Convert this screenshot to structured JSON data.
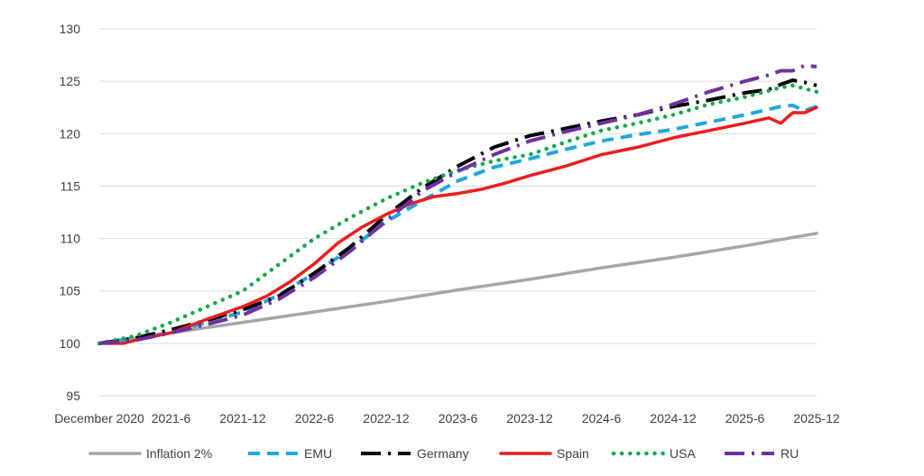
{
  "chart_data": {
    "type": "line",
    "title": "",
    "xlabel": "",
    "ylabel": "",
    "ylim": [
      95,
      130
    ],
    "yticks": [
      95,
      100,
      105,
      110,
      115,
      120,
      125,
      130
    ],
    "xlim": [
      0,
      60
    ],
    "xtick_labels": [
      "December 2020",
      "2021-6",
      "2021-12",
      "2022-6",
      "2022-12",
      "2023-6",
      "2023-12",
      "2024-6",
      "2024-12",
      "2025-6",
      "2025-12"
    ],
    "xtick_pos": [
      0,
      6,
      12,
      18,
      24,
      30,
      36,
      42,
      48,
      54,
      60
    ],
    "grid": true,
    "legend_position": "bottom",
    "series": [
      {
        "name": "Inflation 2%",
        "color": "#a6a6a6",
        "style": "solid",
        "x": [
          0,
          6,
          12,
          18,
          24,
          30,
          36,
          42,
          48,
          54,
          60
        ],
        "values": [
          100.0,
          101.0,
          102.0,
          103.0,
          104.0,
          105.1,
          106.1,
          107.2,
          108.2,
          109.3,
          110.5
        ]
      },
      {
        "name": "EMU",
        "color": "#1fa7e1",
        "style": "dash",
        "x": [
          0,
          3,
          6,
          9,
          12,
          15,
          18,
          21,
          24,
          27,
          30,
          33,
          36,
          39,
          42,
          45,
          48,
          51,
          54,
          57,
          58,
          59,
          60
        ],
        "values": [
          100.0,
          100.5,
          101.0,
          102.0,
          103.0,
          104.6,
          106.7,
          109.0,
          111.6,
          113.6,
          115.5,
          116.8,
          117.6,
          118.5,
          119.3,
          119.9,
          120.4,
          121.1,
          121.8,
          122.6,
          122.7,
          122.2,
          122.6
        ]
      },
      {
        "name": "Germany",
        "color": "#000000",
        "style": "dashdot",
        "x": [
          0,
          3,
          6,
          9,
          12,
          15,
          18,
          21,
          24,
          27,
          30,
          33,
          36,
          39,
          42,
          45,
          48,
          51,
          54,
          56,
          57,
          58,
          59,
          60
        ],
        "values": [
          100.0,
          100.5,
          101.3,
          102.2,
          103.2,
          104.5,
          106.7,
          109.2,
          112.2,
          114.8,
          116.9,
          118.7,
          119.8,
          120.5,
          121.2,
          121.8,
          122.6,
          123.2,
          123.9,
          124.2,
          124.7,
          125.1,
          124.9,
          124.6
        ]
      },
      {
        "name": "Spain",
        "color": "#ee1c1c",
        "style": "solid",
        "x": [
          0,
          2,
          3,
          6,
          9,
          12,
          14,
          16,
          18,
          20,
          22,
          24,
          26,
          28,
          30,
          32,
          34,
          36,
          39,
          42,
          45,
          48,
          51,
          54,
          56,
          57,
          58,
          59,
          60
        ],
        "values": [
          100.0,
          100.0,
          100.3,
          101.0,
          102.3,
          103.5,
          104.5,
          105.9,
          107.6,
          109.6,
          111.1,
          112.3,
          113.3,
          114.0,
          114.3,
          114.7,
          115.3,
          116.0,
          116.9,
          118.0,
          118.7,
          119.6,
          120.3,
          121.0,
          121.5,
          121.0,
          122.0,
          122.0,
          122.5
        ]
      },
      {
        "name": "USA",
        "color": "#14a84b",
        "style": "dot",
        "x": [
          0,
          3,
          6,
          9,
          12,
          15,
          18,
          21,
          24,
          27,
          30,
          33,
          36,
          39,
          42,
          45,
          48,
          51,
          54,
          57,
          58,
          59,
          60
        ],
        "values": [
          100.0,
          100.7,
          102.0,
          103.5,
          105.0,
          107.5,
          110.0,
          112.0,
          113.8,
          115.3,
          116.5,
          117.4,
          118.0,
          119.2,
          120.3,
          121.0,
          121.8,
          122.8,
          123.5,
          124.4,
          124.6,
          124.3,
          124.0
        ]
      },
      {
        "name": "RU",
        "color": "#7030a0",
        "style": "dashdot",
        "x": [
          0,
          3,
          6,
          9,
          12,
          15,
          18,
          21,
          24,
          27,
          30,
          33,
          36,
          39,
          42,
          45,
          48,
          51,
          54,
          56,
          57,
          58,
          59,
          60
        ],
        "values": [
          100.0,
          100.3,
          101.0,
          101.8,
          102.7,
          104.2,
          106.3,
          108.8,
          111.7,
          114.5,
          116.4,
          118.0,
          119.3,
          120.2,
          121.0,
          121.8,
          122.8,
          124.0,
          125.0,
          125.6,
          126.0,
          126.0,
          126.5,
          126.4
        ]
      }
    ]
  }
}
